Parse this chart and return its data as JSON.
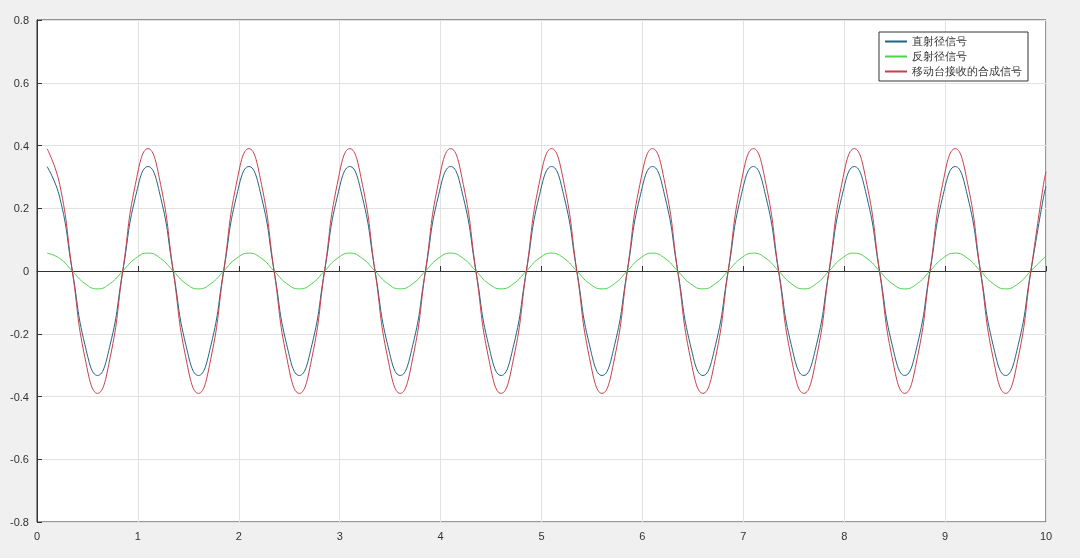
{
  "chart_data": {
    "type": "line",
    "x": [
      0.1,
      0.225,
      0.35,
      0.475,
      0.6,
      0.725,
      0.85,
      0.975,
      1.1,
      1.225,
      1.35,
      1.475,
      1.6,
      1.725,
      1.85,
      1.975,
      2.1,
      2.225,
      2.35,
      2.475,
      2.6,
      2.725,
      2.85,
      2.975,
      3.1,
      3.225,
      3.35,
      3.475,
      3.6,
      3.725,
      3.85,
      3.975,
      4.1,
      4.225,
      4.35,
      4.475,
      4.6,
      4.725,
      4.85,
      4.975,
      5.1,
      5.225,
      5.35,
      5.475,
      5.6,
      5.725,
      5.85,
      5.975,
      6.1,
      6.225,
      6.35,
      6.475,
      6.6,
      6.725,
      6.85,
      6.975,
      7.1,
      7.225,
      7.35,
      7.475,
      7.6,
      7.725,
      7.85,
      7.975,
      8.1,
      8.225,
      8.35,
      8.475,
      8.6,
      8.725,
      8.85,
      8.975,
      9.1,
      9.225,
      9.35,
      9.475,
      9.6,
      9.725,
      9.85,
      9.975,
      10
    ],
    "series": [
      {
        "name": "直射径信号",
        "color": "#1f6485",
        "values": [
          0.333,
          0.235,
          0,
          -0.235,
          -0.333,
          -0.235,
          0,
          0.235,
          0.333,
          0.235,
          0,
          -0.235,
          -0.333,
          -0.235,
          0,
          0.235,
          0.333,
          0.235,
          0,
          -0.235,
          -0.333,
          -0.235,
          0,
          0.235,
          0.333,
          0.235,
          0,
          -0.235,
          -0.333,
          -0.235,
          0,
          0.235,
          0.333,
          0.235,
          0,
          -0.235,
          -0.333,
          -0.235,
          0,
          0.235,
          0.333,
          0.235,
          0,
          -0.235,
          -0.333,
          -0.235,
          0,
          0.235,
          0.333,
          0.235,
          0,
          -0.235,
          -0.333,
          -0.235,
          0,
          0.235,
          0.333,
          0.235,
          0,
          -0.235,
          -0.333,
          -0.235,
          0,
          0.235,
          0.333,
          0.235,
          0,
          -0.235,
          -0.333,
          -0.235,
          0,
          0.235,
          0.333,
          0.235,
          0,
          -0.235,
          -0.333,
          -0.235,
          0,
          0.235,
          0.269
        ]
      },
      {
        "name": "反射径信号",
        "color": "#4fd04f",
        "values": [
          0.057,
          0.04,
          0,
          -0.04,
          -0.057,
          -0.04,
          0,
          0.04,
          0.057,
          0.04,
          0,
          -0.04,
          -0.057,
          -0.04,
          0,
          0.04,
          0.057,
          0.04,
          0,
          -0.04,
          -0.057,
          -0.04,
          0,
          0.04,
          0.057,
          0.04,
          0,
          -0.04,
          -0.057,
          -0.04,
          0,
          0.04,
          0.057,
          0.04,
          0,
          -0.04,
          -0.057,
          -0.04,
          0,
          0.04,
          0.057,
          0.04,
          0,
          -0.04,
          -0.057,
          -0.04,
          0,
          0.04,
          0.057,
          0.04,
          0,
          -0.04,
          -0.057,
          -0.04,
          0,
          0.04,
          0.057,
          0.04,
          0,
          -0.04,
          -0.057,
          -0.04,
          0,
          0.04,
          0.057,
          0.04,
          0,
          -0.04,
          -0.057,
          -0.04,
          0,
          0.04,
          0.057,
          0.04,
          0,
          -0.04,
          -0.057,
          -0.04,
          0,
          0.04,
          0.046
        ]
      },
      {
        "name": "移动台接收的合成信号",
        "color": "#c8404a",
        "values": [
          0.39,
          0.276,
          0,
          -0.276,
          -0.39,
          -0.276,
          0,
          0.276,
          0.39,
          0.276,
          0,
          -0.276,
          -0.39,
          -0.276,
          0,
          0.276,
          0.39,
          0.276,
          0,
          -0.276,
          -0.39,
          -0.276,
          0,
          0.276,
          0.39,
          0.276,
          0,
          -0.276,
          -0.39,
          -0.276,
          0,
          0.276,
          0.39,
          0.276,
          0,
          -0.276,
          -0.39,
          -0.276,
          0,
          0.276,
          0.39,
          0.276,
          0,
          -0.276,
          -0.39,
          -0.276,
          0,
          0.276,
          0.39,
          0.276,
          0,
          -0.276,
          -0.39,
          -0.276,
          0,
          0.276,
          0.39,
          0.276,
          0,
          -0.276,
          -0.39,
          -0.276,
          0,
          0.276,
          0.39,
          0.276,
          0,
          -0.276,
          -0.39,
          -0.276,
          0,
          0.276,
          0.39,
          0.276,
          0,
          -0.276,
          -0.39,
          -0.276,
          0,
          0.276,
          0.316
        ]
      }
    ],
    "xlim": [
      0,
      10
    ],
    "xticks": [
      0,
      1,
      2,
      3,
      4,
      5,
      6,
      7,
      8,
      9,
      10
    ],
    "ylim": [
      -0.8,
      0.8
    ],
    "yticks": [
      -0.8,
      -0.6,
      -0.4,
      -0.2,
      0,
      0.2,
      0.4,
      0.6,
      0.8
    ],
    "grid": true,
    "legend": "top right",
    "marker": "none",
    "line_style": "solid"
  }
}
